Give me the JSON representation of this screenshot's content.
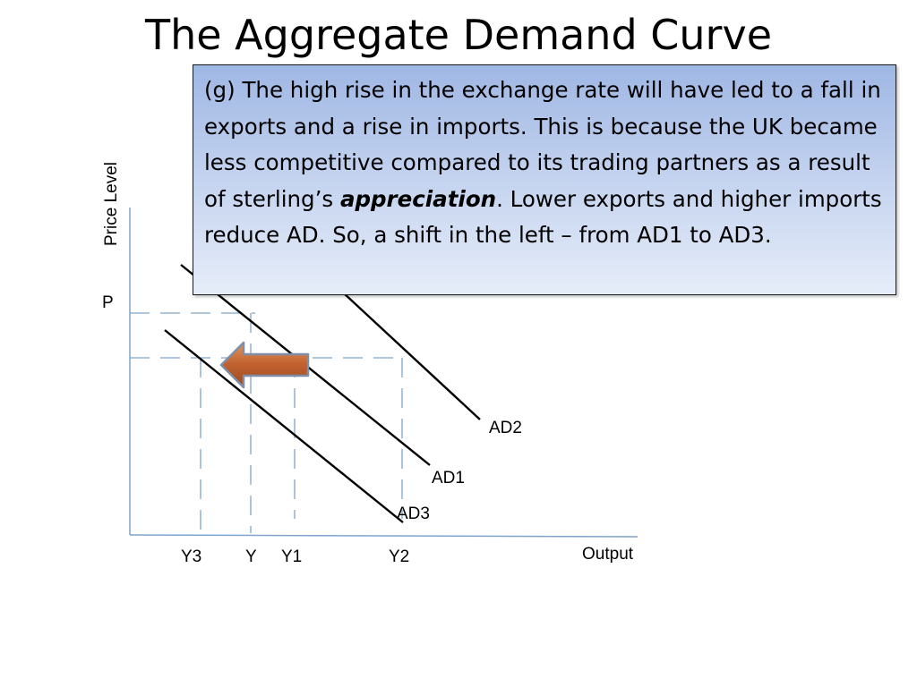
{
  "slide": {
    "title": "The Aggregate Demand Curve"
  },
  "callout": {
    "text_before": "(g) The high rise in the exchange rate will have led to a fall in exports and a rise in imports.  This is because the UK became less competitive compared to its trading partners as a result of sterling’s ",
    "emphasis": "appreciation",
    "text_after": ".  Lower exports and higher imports reduce AD.  So, a shift in the left – from AD1 to AD3."
  },
  "diagram": {
    "y_axis_label": "Price Level",
    "x_axis_label": "Output",
    "price_label": "P",
    "curves": [
      {
        "id": "ad1",
        "label": "AD1"
      },
      {
        "id": "ad2",
        "label": "AD2"
      },
      {
        "id": "ad3",
        "label": "AD3"
      }
    ],
    "output_labels": [
      "Y3",
      "Y",
      "Y1",
      "Y2"
    ],
    "colors": {
      "axis": "#7fa3cc",
      "guide": "#7fa3cc",
      "curve": "#000000",
      "arrow_fill": "#c0602e",
      "arrow_stroke": "#7f8ea8"
    },
    "shift_arrow": "left-arrow-icon"
  }
}
